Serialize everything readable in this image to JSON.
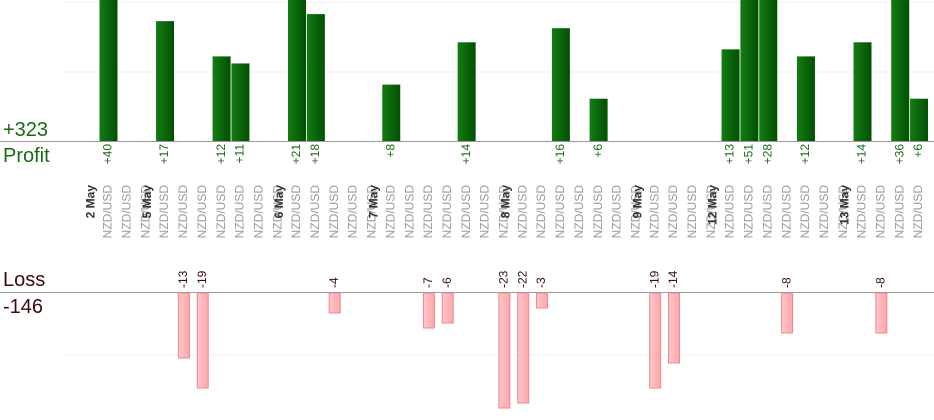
{
  "summary": {
    "profit_total": "+323",
    "profit_label": "Profit",
    "loss_label": "Loss",
    "loss_total": "-146"
  },
  "colors": {
    "profit_bar": "#0b6b0b",
    "profit_text": "#1a6a14",
    "loss_bar": "#ffb5b8",
    "loss_border": "#e88a8f",
    "loss_text": "#3b0a0a",
    "grid": "#eeeeee",
    "axis": "#999999",
    "date_text": "#333333",
    "pair_text": "#999999"
  },
  "chart_data": {
    "type": "bar",
    "title": "",
    "profit_ylim": [
      0,
      20
    ],
    "loss_ylim": [
      0,
      17
    ],
    "grid": true,
    "categories": [
      "NZD/USD",
      "NZD/USD",
      "NZD/USD",
      "NZD/USD",
      "NZD/USD",
      "NZD/USD",
      "NZD/USD",
      "NZD/USD",
      "NZD/USD",
      "NZD/USD",
      "NZD/USD",
      "NZD/USD",
      "NZD/USD",
      "NZD/USD",
      "NZD/USD",
      "NZD/USD",
      "NZD/USD",
      "NZD/USD",
      "NZD/USD",
      "NZD/USD",
      "NZD/USD",
      "NZD/USD",
      "NZD/USD",
      "NZD/USD",
      "NZD/USD",
      "NZD/USD",
      "NZD/USD",
      "NZD/USD",
      "NZD/USD",
      "NZD/USD",
      "NZD/USD",
      "NZD/USD",
      "NZD/USD",
      "NZD/USD",
      "NZD/USD",
      "NZD/USD",
      "NZD/USD",
      "NZD/USD",
      "NZD/USD",
      "NZD/USD",
      "NZD/USD",
      "NZD/USD",
      "NZD/USD",
      "NZD/USD"
    ],
    "date_labels": [
      {
        "before_index": 0,
        "label": "2 May"
      },
      {
        "before_index": 3,
        "label": "5 May"
      },
      {
        "before_index": 10,
        "label": "6 May"
      },
      {
        "before_index": 15,
        "label": "7 May"
      },
      {
        "before_index": 22,
        "label": "8 May"
      },
      {
        "before_index": 29,
        "label": "9 May"
      },
      {
        "before_index": 33,
        "label": "12 May"
      },
      {
        "before_index": 40,
        "label": "13 May"
      }
    ],
    "series": [
      {
        "name": "Profit",
        "values": [
          40,
          null,
          null,
          17,
          null,
          null,
          12,
          11,
          null,
          null,
          21,
          18,
          null,
          null,
          null,
          8,
          null,
          null,
          null,
          14,
          null,
          null,
          null,
          null,
          16,
          null,
          6,
          null,
          null,
          null,
          null,
          null,
          null,
          13,
          51,
          28,
          null,
          12,
          null,
          null,
          14,
          null,
          36,
          6
        ],
        "labels": [
          "+40",
          "",
          "",
          "+17",
          "",
          "",
          "+12",
          "+11",
          "",
          "",
          "+21",
          "+18",
          "",
          "",
          "",
          "+8",
          "",
          "",
          "",
          "+14",
          "",
          "",
          "",
          "",
          "+16",
          "",
          "+6",
          "",
          "",
          "",
          "",
          "",
          "",
          "+13",
          "+51",
          "+28",
          "",
          "+12",
          "",
          "",
          "+14",
          "",
          "+36",
          "+6"
        ]
      },
      {
        "name": "Loss",
        "values": [
          null,
          null,
          null,
          null,
          -13,
          -19,
          null,
          null,
          null,
          null,
          null,
          null,
          -4,
          null,
          null,
          null,
          null,
          -7,
          -6,
          null,
          null,
          -23,
          -22,
          -3,
          null,
          null,
          null,
          null,
          null,
          -19,
          -14,
          null,
          null,
          null,
          null,
          null,
          -8,
          null,
          null,
          null,
          null,
          -8,
          null,
          null
        ],
        "labels": [
          "",
          "",
          "",
          "",
          "-13",
          "-19",
          "",
          "",
          "",
          "",
          "",
          "",
          "-4",
          "",
          "",
          "",
          "",
          "-7",
          "-6",
          "",
          "",
          "-23",
          "-22",
          "-3",
          "",
          "",
          "",
          "",
          "",
          "-19",
          "-14",
          "",
          "",
          "",
          "",
          "",
          "-8",
          "",
          "",
          "",
          "",
          "-8",
          "",
          ""
        ]
      }
    ]
  }
}
